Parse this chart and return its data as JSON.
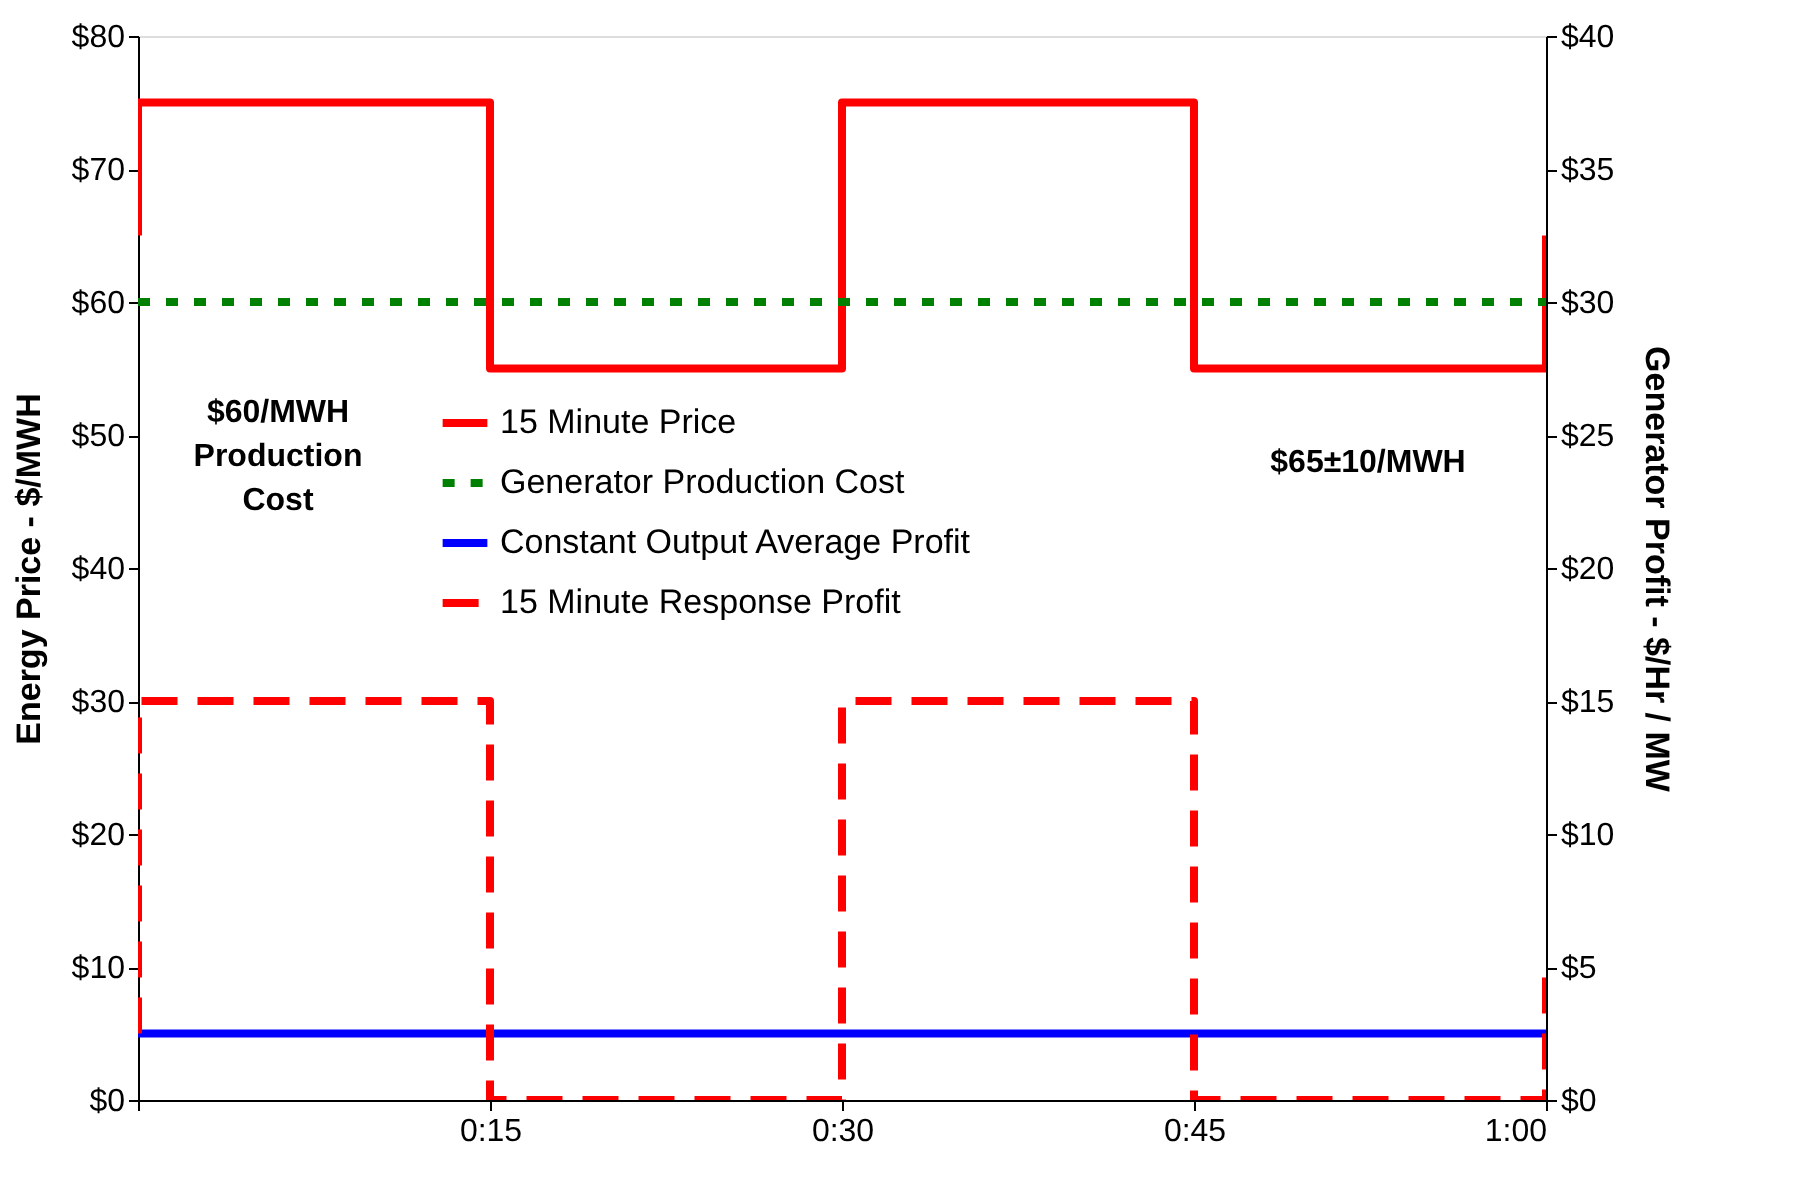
{
  "chart_data": {
    "type": "line",
    "xlabel": null,
    "ylabel": "Energy Price - $/MWH",
    "y2label": "Generator Profit - $/Hr / MW",
    "xlim": [
      0,
      1
    ],
    "xticks": [
      {
        "value": 0,
        "label": null
      },
      {
        "value": 0.25,
        "label": "0:15"
      },
      {
        "value": 0.5,
        "label": "0:30"
      },
      {
        "value": 0.75,
        "label": "0:45"
      },
      {
        "value": 1,
        "label": "1:00"
      }
    ],
    "ylim": [
      0,
      80
    ],
    "yticks": [
      {
        "value": 0,
        "label": "$0"
      },
      {
        "value": 10,
        "label": "$10"
      },
      {
        "value": 20,
        "label": "$20"
      },
      {
        "value": 30,
        "label": "$30"
      },
      {
        "value": 40,
        "label": "$40"
      },
      {
        "value": 50,
        "label": "$50"
      },
      {
        "value": 60,
        "label": "$60"
      },
      {
        "value": 70,
        "label": "$70"
      },
      {
        "value": 80,
        "label": "$80"
      }
    ],
    "y2lim": [
      0,
      40
    ],
    "y2ticks": [
      {
        "value": 0,
        "label": "$0"
      },
      {
        "value": 5,
        "label": "$5"
      },
      {
        "value": 10,
        "label": "$10"
      },
      {
        "value": 15,
        "label": "$15"
      },
      {
        "value": 20,
        "label": "$20"
      },
      {
        "value": 25,
        "label": "$25"
      },
      {
        "value": 30,
        "label": "$30"
      },
      {
        "value": 35,
        "label": "$35"
      },
      {
        "value": 40,
        "label": "$40"
      }
    ],
    "legend": "left",
    "series": [
      {
        "name": "15 Minute Price",
        "color": "#ff0000",
        "line_style": "solid",
        "x": [
          0,
          0,
          0.25,
          0.25,
          0.5,
          0.5,
          0.75,
          0.75,
          1,
          1
        ],
        "values": [
          65,
          75,
          75,
          55,
          55,
          75,
          75,
          55,
          55,
          65
        ]
      },
      {
        "name": "Generator Production Cost",
        "color": "#008000",
        "line_style": "dotted",
        "x": [
          0,
          1
        ],
        "values": [
          60,
          60
        ]
      },
      {
        "name": "Constant Output Average Profit",
        "color": "#0000ff",
        "line_style": "solid",
        "axis": "y2",
        "x": [
          0,
          1
        ],
        "values": [
          2.5,
          2.5
        ]
      },
      {
        "name": "15 Minute Response Profit",
        "color": "#ff0000",
        "line_style": "dashed",
        "axis": "y2",
        "x": [
          0,
          0,
          0.25,
          0.25,
          0.5,
          0.5,
          0.75,
          0.75,
          1,
          1
        ],
        "values": [
          2.5,
          15,
          15,
          0,
          0,
          15,
          15,
          0,
          0,
          5
        ]
      }
    ],
    "annotations": [
      "$60/MWH\nProduction\nCost",
      "$65±10/MWH"
    ]
  }
}
